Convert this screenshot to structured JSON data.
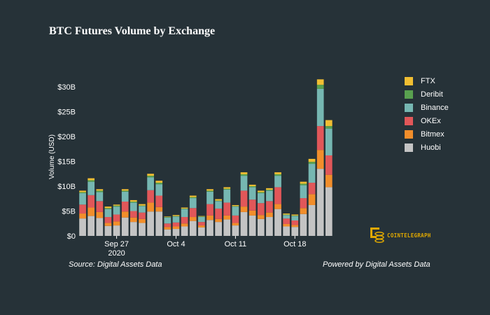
{
  "title": "BTC Futures Volume by Exchange",
  "footer": {
    "source": "Source: Digital Assets Data",
    "powered": "Powered by Digital Assets Data"
  },
  "brand": {
    "name": "COINTELEGRAPH",
    "logo_icon": "cointelegraph-logo-icon",
    "color": "#e0a800"
  },
  "chart_data": {
    "type": "bar",
    "stacked": true,
    "title": "BTC Futures Volume by Exchange",
    "ylabel": "Volume (USD)",
    "xlabel": "",
    "ylim": [
      0,
      30
    ],
    "y_unit": "USD billions",
    "y_ticks": [
      {
        "value": 0,
        "label": "$0"
      },
      {
        "value": 5,
        "label": "$5B"
      },
      {
        "value": 10,
        "label": "$10B"
      },
      {
        "value": 15,
        "label": "$15B"
      },
      {
        "value": 20,
        "label": "$20B"
      },
      {
        "value": 25,
        "label": "$25B"
      },
      {
        "value": 30,
        "label": "$30B"
      }
    ],
    "x_ticks": [
      {
        "index": 4,
        "label": "Sep 27",
        "sublabel": "2020"
      },
      {
        "index": 11,
        "label": "Oct 4",
        "sublabel": ""
      },
      {
        "index": 18,
        "label": "Oct 11",
        "sublabel": ""
      },
      {
        "index": 25,
        "label": "Oct 18",
        "sublabel": ""
      }
    ],
    "categories": [
      "Sep 23",
      "Sep 24",
      "Sep 25",
      "Sep 26",
      "Sep 27",
      "Sep 28",
      "Sep 29",
      "Sep 30",
      "Oct 1",
      "Oct 2",
      "Oct 3",
      "Oct 4",
      "Oct 5",
      "Oct 6",
      "Oct 7",
      "Oct 8",
      "Oct 9",
      "Oct 10",
      "Oct 11",
      "Oct 12",
      "Oct 13",
      "Oct 14",
      "Oct 15",
      "Oct 16",
      "Oct 17",
      "Oct 18",
      "Oct 19",
      "Oct 20",
      "Oct 21",
      "Oct 22",
      "Oct 23"
    ],
    "legend_position": "right",
    "grid": false,
    "series": [
      {
        "name": "Huobi",
        "color": "#c4c4c4",
        "values": [
          3.5,
          4.0,
          3.6,
          2.0,
          2.1,
          3.7,
          2.8,
          2.6,
          4.9,
          4.9,
          1.3,
          1.4,
          1.9,
          3.0,
          1.7,
          3.2,
          2.8,
          3.3,
          2.1,
          4.8,
          4.1,
          3.4,
          3.8,
          5.4,
          1.9,
          1.8,
          4.4,
          6.2,
          13.5,
          9.8,
          0
        ]
      },
      {
        "name": "Bitmex",
        "color": "#f28e2b",
        "values": [
          1.0,
          1.7,
          1.2,
          0.6,
          0.8,
          1.2,
          0.9,
          0.8,
          1.8,
          0.9,
          0.5,
          0.5,
          0.6,
          0.8,
          0.4,
          0.9,
          0.6,
          0.8,
          0.5,
          1.1,
          1.0,
          0.8,
          0.9,
          1.0,
          0.5,
          0.4,
          1.2,
          2.2,
          3.8,
          2.5,
          0
        ]
      },
      {
        "name": "OKEx",
        "color": "#e15759",
        "values": [
          1.8,
          2.5,
          2.2,
          1.2,
          1.4,
          2.0,
          1.3,
          1.3,
          2.5,
          2.3,
          0.7,
          0.8,
          1.3,
          1.8,
          0.7,
          2.3,
          2.1,
          2.6,
          1.5,
          3.2,
          2.2,
          2.4,
          2.3,
          3.4,
          1.1,
          0.9,
          2.0,
          2.3,
          4.8,
          3.9,
          0
        ]
      },
      {
        "name": "Binance",
        "color": "#76b7b2",
        "values": [
          2.3,
          2.7,
          1.8,
          1.6,
          1.6,
          2.0,
          1.7,
          1.3,
          2.6,
          2.3,
          1.2,
          1.2,
          1.6,
          2.0,
          1.0,
          2.5,
          1.5,
          2.6,
          1.8,
          3.0,
          2.5,
          2.0,
          2.1,
          2.3,
          0.7,
          0.9,
          2.6,
          3.8,
          7.5,
          5.4,
          0
        ]
      },
      {
        "name": "Deribit",
        "color": "#59a14f",
        "values": [
          0.2,
          0.3,
          0.3,
          0.2,
          0.2,
          0.2,
          0.2,
          0.1,
          0.3,
          0.3,
          0.1,
          0.1,
          0.1,
          0.2,
          0.1,
          0.2,
          0.1,
          0.2,
          0.1,
          0.3,
          0.2,
          0.2,
          0.2,
          0.3,
          0.1,
          0.1,
          0.3,
          0.4,
          0.8,
          0.5,
          0
        ]
      },
      {
        "name": "FTX",
        "color": "#f1be32",
        "values": [
          0.3,
          0.4,
          0.3,
          0.3,
          0.2,
          0.3,
          0.3,
          0.3,
          0.4,
          0.4,
          0.1,
          0.2,
          0.2,
          0.3,
          0.1,
          0.3,
          0.3,
          0.3,
          0.2,
          0.4,
          0.3,
          0.3,
          0.3,
          0.4,
          0.2,
          0.2,
          0.4,
          0.6,
          1.1,
          1.2,
          0
        ]
      }
    ]
  }
}
